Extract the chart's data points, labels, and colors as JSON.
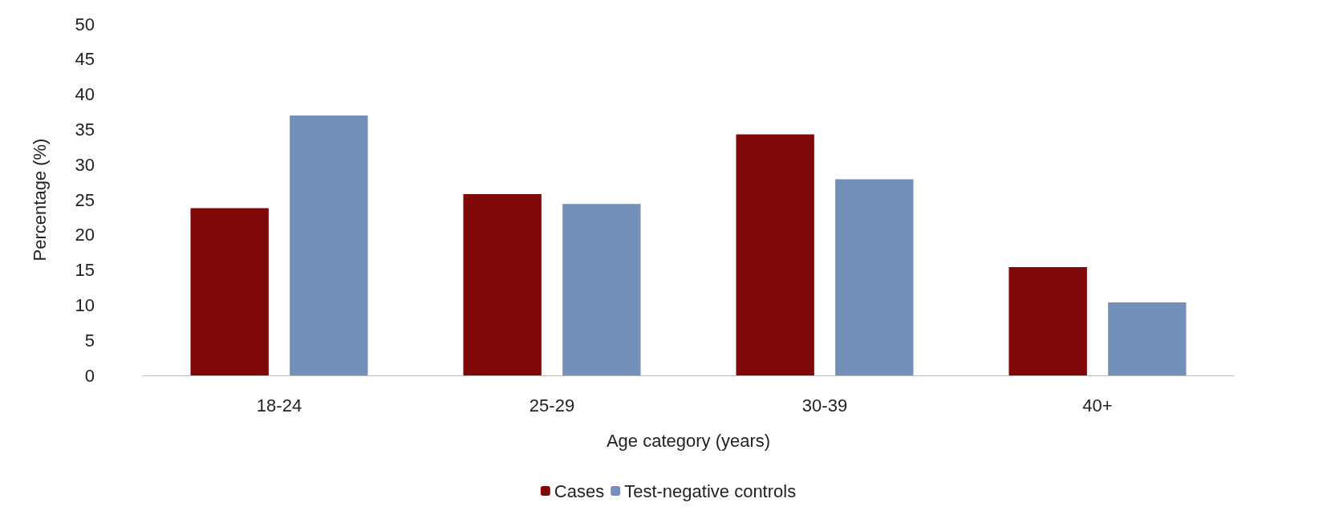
{
  "chart_data": {
    "type": "bar",
    "xlabel": "Age category (years)",
    "ylabel": "Percentage (%)",
    "categories": [
      "18-24",
      "25-29",
      "30-39",
      "40+"
    ],
    "series": [
      {
        "name": "Cases",
        "color": "#7f0808",
        "values": [
          23.8,
          25.8,
          34.3,
          15.4
        ]
      },
      {
        "name": "Test-negative controls",
        "color": "#7290b8",
        "values": [
          37,
          24.4,
          27.9,
          10.4
        ]
      }
    ],
    "ylim": [
      0,
      50
    ],
    "yticks": [
      0,
      5,
      10,
      15,
      20,
      25,
      30,
      35,
      40,
      45,
      50
    ],
    "grid": false,
    "legend": "bottom"
  }
}
